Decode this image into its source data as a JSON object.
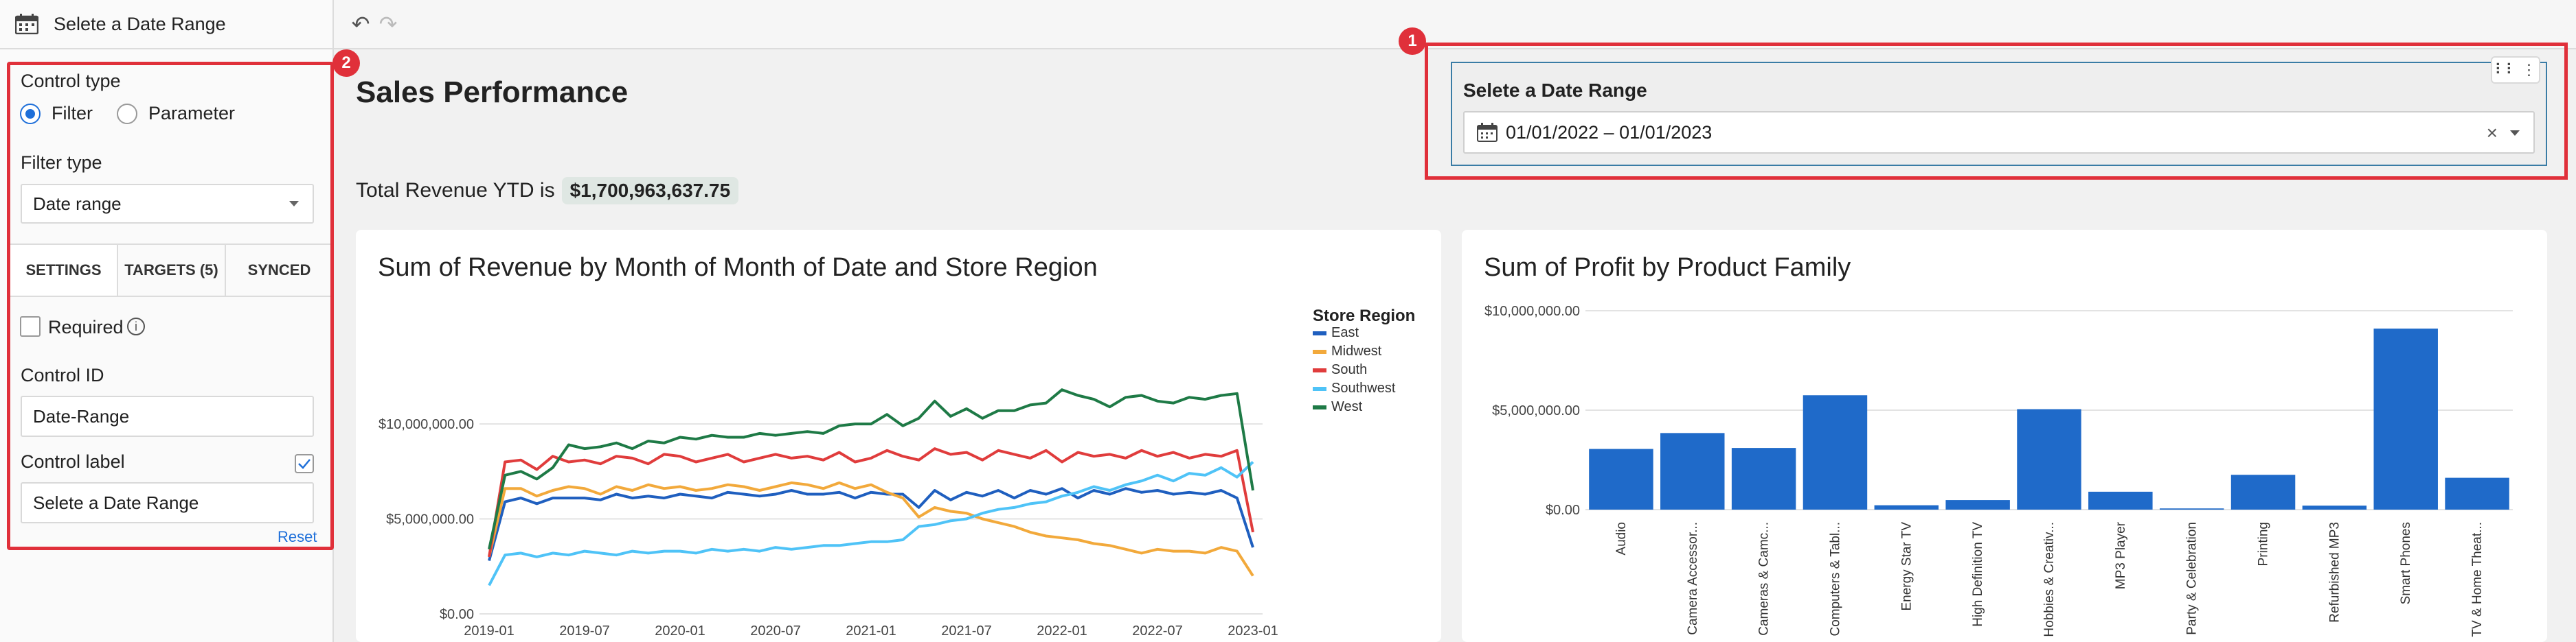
{
  "panel": {
    "header_title": "Selete a Date Range",
    "badge": "2",
    "control_type_label": "Control type",
    "control_type_options": [
      "Filter",
      "Parameter"
    ],
    "filter_type_label": "Filter type",
    "filter_type_value": "Date range",
    "tabs": [
      "SETTINGS",
      "TARGETS (5)",
      "SYNCED"
    ],
    "required_label": "Required",
    "control_id_label": "Control ID",
    "control_id_value": "Date-Range",
    "control_label_label": "Control label",
    "control_label_value": "Selete a Date Range",
    "reset_label": "Reset"
  },
  "toolbar": {
    "undo_icon": "undo-icon",
    "redo_icon": "redo-icon"
  },
  "page": {
    "title": "Sales Performance",
    "revenue_prefix": "Total Revenue YTD is",
    "revenue_value": "$1,700,963,637.75"
  },
  "control": {
    "badge": "1",
    "label": "Selete a Date Range",
    "value": "01/01/2022 – 01/01/2023",
    "clear_glyph": "×"
  },
  "chart_data": [
    {
      "type": "line",
      "title": "Sum of Revenue by Month of Month of Date and Store Region",
      "legend_title": "Store Region",
      "y_ticks": [
        "$10,000,000.00",
        "$5,000,000.00",
        "$0.00"
      ],
      "x_ticks": [
        "2019-01",
        "2019-07",
        "2020-01",
        "2020-07",
        "2021-01",
        "2021-07",
        "2022-01",
        "2022-07",
        "2023-01"
      ],
      "ylim": [
        0,
        13000000
      ],
      "x": [
        "2019-01",
        "2019-02",
        "2019-03",
        "2019-04",
        "2019-05",
        "2019-06",
        "2019-07",
        "2019-08",
        "2019-09",
        "2019-10",
        "2019-11",
        "2019-12",
        "2020-01",
        "2020-02",
        "2020-03",
        "2020-04",
        "2020-05",
        "2020-06",
        "2020-07",
        "2020-08",
        "2020-09",
        "2020-10",
        "2020-11",
        "2020-12",
        "2021-01",
        "2021-02",
        "2021-03",
        "2021-04",
        "2021-05",
        "2021-06",
        "2021-07",
        "2021-08",
        "2021-09",
        "2021-10",
        "2021-11",
        "2021-12",
        "2022-01",
        "2022-02",
        "2022-03",
        "2022-04",
        "2022-05",
        "2022-06",
        "2022-07",
        "2022-08",
        "2022-09",
        "2022-10",
        "2022-11",
        "2022-12",
        "2023-01"
      ],
      "series": [
        {
          "name": "East",
          "color": "#1f5fbf",
          "values": [
            2800000,
            5900000,
            6100000,
            5800000,
            6100000,
            6100000,
            6100000,
            6000000,
            6300000,
            6100000,
            6200000,
            6100000,
            6300000,
            6200000,
            6100000,
            6400000,
            6300000,
            6200000,
            6300000,
            6500000,
            6300000,
            6300000,
            6400000,
            6100000,
            6400000,
            6300000,
            6300000,
            5600000,
            6500000,
            6000000,
            6400000,
            6200000,
            6500000,
            6100000,
            6500000,
            6300000,
            6600000,
            6100000,
            6500000,
            6300000,
            6600000,
            6400000,
            6500000,
            6300000,
            6400000,
            6300000,
            6500000,
            6100000,
            3500000
          ]
        },
        {
          "name": "Midwest",
          "color": "#f2a93b",
          "values": [
            3000000,
            6600000,
            6600000,
            6200000,
            6500000,
            6700000,
            6600000,
            6300000,
            6700000,
            6500000,
            6800000,
            6600000,
            6700000,
            6500000,
            6600000,
            6800000,
            6700000,
            6500000,
            6700000,
            6900000,
            6800000,
            6600000,
            6900000,
            6600000,
            6800000,
            6400000,
            6100000,
            5100000,
            5600000,
            5400000,
            5300000,
            5000000,
            4800000,
            4600000,
            4300000,
            4100000,
            4000000,
            3900000,
            3700000,
            3600000,
            3400000,
            3200000,
            3400000,
            3300000,
            3300000,
            3200000,
            3500000,
            3300000,
            2000000
          ]
        },
        {
          "name": "South",
          "color": "#e03c3c",
          "values": [
            3000000,
            8000000,
            8100000,
            7600000,
            8300000,
            8000000,
            8100000,
            7900000,
            8300000,
            8200000,
            7900000,
            8400000,
            8300000,
            8000000,
            8200000,
            8400000,
            8000000,
            8200000,
            8400000,
            8200000,
            8300000,
            8100000,
            8500000,
            8000000,
            8200000,
            8600000,
            8300000,
            8100000,
            8700000,
            8400000,
            8500000,
            8100000,
            8600000,
            8400000,
            8200000,
            8600000,
            8000000,
            8500000,
            8300000,
            8400000,
            8200000,
            8600000,
            8300000,
            8500000,
            8200000,
            8400000,
            8300000,
            8600000,
            4300000
          ]
        },
        {
          "name": "Southwest",
          "color": "#4fc3f7",
          "values": [
            1500000,
            3100000,
            3200000,
            3000000,
            3200000,
            3100000,
            3300000,
            3200000,
            3100000,
            3300000,
            3200000,
            3300000,
            3300000,
            3200000,
            3400000,
            3300000,
            3400000,
            3300000,
            3500000,
            3400000,
            3500000,
            3600000,
            3600000,
            3700000,
            3800000,
            3800000,
            3900000,
            4600000,
            4700000,
            4900000,
            5000000,
            5300000,
            5500000,
            5600000,
            5800000,
            5900000,
            6200000,
            6400000,
            6700000,
            6500000,
            6800000,
            7000000,
            7300000,
            7000000,
            7400000,
            7300000,
            7700000,
            7200000,
            8000000
          ]
        },
        {
          "name": "West",
          "color": "#1e7a46",
          "values": [
            3400000,
            7300000,
            7500000,
            7100000,
            7700000,
            8900000,
            8700000,
            8800000,
            9000000,
            8700000,
            9100000,
            9000000,
            9300000,
            9200000,
            9400000,
            9300000,
            9300000,
            9500000,
            9400000,
            9500000,
            9600000,
            9500000,
            9900000,
            10000000,
            10000000,
            10500000,
            9900000,
            10300000,
            11200000,
            10400000,
            10800000,
            10300000,
            10700000,
            10700000,
            11000000,
            11100000,
            11800000,
            11500000,
            11300000,
            10900000,
            11400000,
            11500000,
            11200000,
            11100000,
            11400000,
            11300000,
            11500000,
            11600000,
            6500000
          ]
        }
      ]
    },
    {
      "type": "bar",
      "title": "Sum of Profit by Product Family",
      "y_ticks": [
        "$10,000,000.00",
        "$5,000,000.00",
        "$0.00"
      ],
      "ylim": [
        0,
        10000000
      ],
      "categories": [
        "Audio",
        "Camera Accessor...",
        "Cameras & Camc...",
        "Computers & Tabl...",
        "Energy Star TV",
        "High Definition TV",
        "Hobbies & Creativ...",
        "MP3 Player",
        "Party & Celebration",
        "Printing",
        "Refurbished MP3",
        "Smart Phones",
        "TV & Home Theat..."
      ],
      "values": [
        3050000,
        3850000,
        3100000,
        5750000,
        220000,
        480000,
        5050000,
        900000,
        60000,
        1750000,
        200000,
        9100000,
        1600000
      ]
    }
  ]
}
